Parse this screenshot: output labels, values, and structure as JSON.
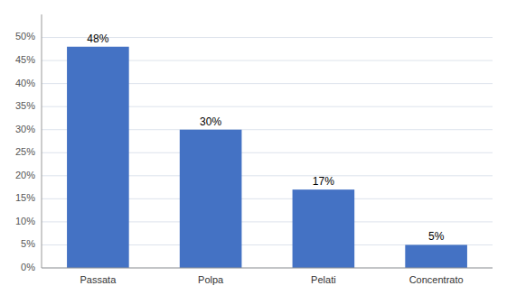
{
  "chart_data": {
    "type": "bar",
    "categories": [
      "Passata",
      "Polpa",
      "Pelati",
      "Concentrato"
    ],
    "values": [
      48,
      30,
      17,
      5
    ],
    "value_labels": [
      "48%",
      "30%",
      "17%",
      "5%"
    ],
    "data_labels": true,
    "color": "#4472C4",
    "ylim": [
      0,
      55
    ],
    "yticks": [
      {
        "value": 0,
        "label": "0%"
      },
      {
        "value": 5,
        "label": "5%"
      },
      {
        "value": 10,
        "label": "10%"
      },
      {
        "value": 15,
        "label": "15%"
      },
      {
        "value": 20,
        "label": "20%"
      },
      {
        "value": 25,
        "label": "25%"
      },
      {
        "value": 30,
        "label": "30%"
      },
      {
        "value": 35,
        "label": "35%"
      },
      {
        "value": 40,
        "label": "40%"
      },
      {
        "value": 45,
        "label": "45%"
      },
      {
        "value": 50,
        "label": "50%"
      }
    ],
    "grid": true
  }
}
